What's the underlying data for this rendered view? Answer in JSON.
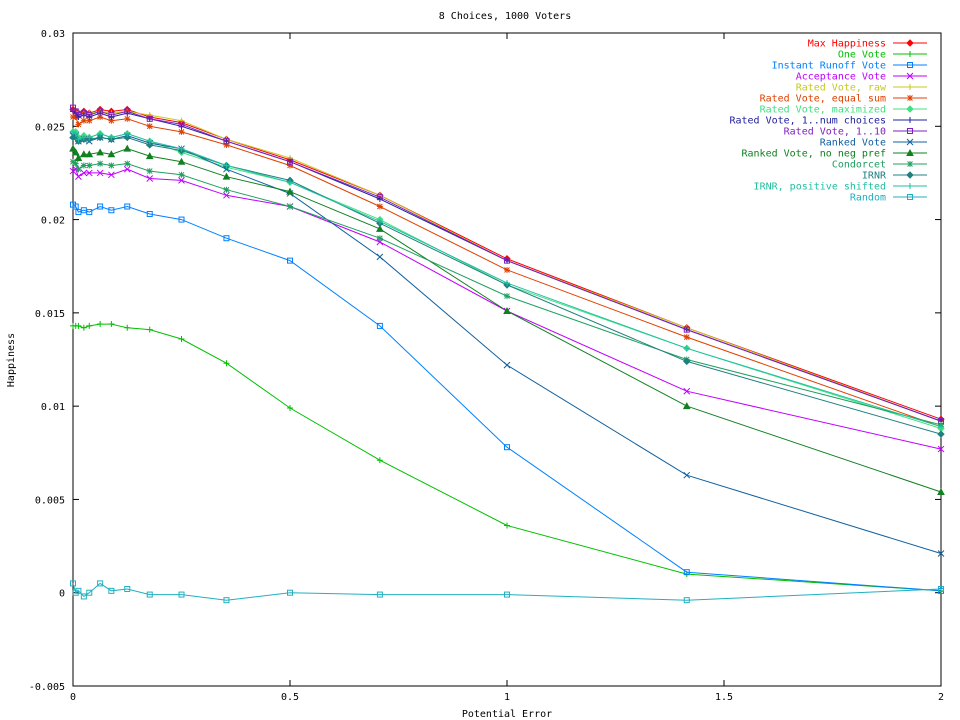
{
  "chart_data": {
    "type": "line",
    "title": "8 Choices, 1000 Voters",
    "xlabel": "Potential Error",
    "ylabel": "Happiness",
    "xlim": [
      0,
      2
    ],
    "ylim": [
      -0.005,
      0.03
    ],
    "x_ticks": [
      "0",
      "0.5",
      "1",
      "1.5",
      "2"
    ],
    "x_tick_values": [
      0,
      0.5,
      1,
      1.5,
      2
    ],
    "y_ticks": [
      "-0.005",
      "0",
      "0.005",
      "0.01",
      "0.015",
      "0.02",
      "0.025",
      "0.03"
    ],
    "y_tick_values": [
      -0.005,
      0,
      0.005,
      0.01,
      0.015,
      0.02,
      0.025,
      0.03
    ],
    "grid": false,
    "legend_position": "top-right",
    "x": [
      0,
      0.00625,
      0.0125,
      0.025,
      0.0375,
      0.0625,
      0.0884,
      0.125,
      0.1768,
      0.25,
      0.3536,
      0.5,
      0.7071,
      1,
      1.4142,
      2
    ],
    "series": [
      {
        "name": "Max Happiness",
        "color": "#ff0000",
        "marker": "diamond",
        "values": [
          0.0259,
          0.0258,
          0.0257,
          0.0258,
          0.0257,
          0.0259,
          0.0258,
          0.0259,
          0.0255,
          0.0252,
          0.0243,
          0.0232,
          0.0213,
          0.0179,
          0.0142,
          0.0093
        ]
      },
      {
        "name": "One Vote",
        "color": "#00c000",
        "marker": "plus",
        "values": [
          0.0143,
          0.0143,
          0.0143,
          0.0142,
          0.0143,
          0.0144,
          0.0144,
          0.0142,
          0.0141,
          0.0136,
          0.0123,
          0.0099,
          0.0071,
          0.0036,
          0.001,
          0.0001
        ]
      },
      {
        "name": "Instant Runoff Vote",
        "color": "#0080ff",
        "marker": "square",
        "values": [
          0.0208,
          0.0207,
          0.0204,
          0.0205,
          0.0204,
          0.0207,
          0.0205,
          0.0207,
          0.0203,
          0.02,
          0.019,
          0.0178,
          0.0143,
          0.0078,
          0.0011,
          0.0001
        ]
      },
      {
        "name": "Acceptance Vote",
        "color": "#c000ff",
        "marker": "cross",
        "values": [
          0.0226,
          0.0227,
          0.0223,
          0.0225,
          0.0225,
          0.0225,
          0.0224,
          0.0227,
          0.0222,
          0.0221,
          0.0213,
          0.0207,
          0.0188,
          0.0151,
          0.0108,
          0.0077
        ]
      },
      {
        "name": "Rated Vote, raw",
        "color": "#c8c820",
        "marker": "plus",
        "values": [
          0.0258,
          0.0258,
          0.0257,
          0.0257,
          0.0257,
          0.0258,
          0.0257,
          0.0258,
          0.0256,
          0.0253,
          0.0243,
          0.0233,
          0.0213,
          0.0178,
          0.0142,
          0.0092
        ]
      },
      {
        "name": "Rated Vote, equal sum",
        "color": "#e04000",
        "marker": "star",
        "values": [
          0.0255,
          0.0255,
          0.0251,
          0.0253,
          0.0253,
          0.0255,
          0.0253,
          0.0254,
          0.025,
          0.0247,
          0.024,
          0.0229,
          0.0207,
          0.0173,
          0.0137,
          0.0089
        ]
      },
      {
        "name": "Rated Vote, maximized",
        "color": "#40e080",
        "marker": "diamond",
        "values": [
          0.0247,
          0.0247,
          0.0244,
          0.0245,
          0.0244,
          0.0246,
          0.0244,
          0.0246,
          0.0242,
          0.0236,
          0.0228,
          0.022,
          0.02,
          0.0165,
          0.0131,
          0.0088
        ]
      },
      {
        "name": "Rated Vote, 1..num choices",
        "color": "#2020a0",
        "marker": "plus",
        "values": [
          0.0258,
          0.0257,
          0.0255,
          0.0256,
          0.0255,
          0.0257,
          0.0255,
          0.0257,
          0.0254,
          0.025,
          0.0242,
          0.0231,
          0.0211,
          0.0178,
          0.0141,
          0.0092
        ]
      },
      {
        "name": "Rated Vote, 1..10",
        "color": "#8020c0",
        "marker": "square",
        "values": [
          0.026,
          0.0258,
          0.0256,
          0.0257,
          0.0256,
          0.0258,
          0.0256,
          0.0258,
          0.0254,
          0.0251,
          0.0242,
          0.0231,
          0.0212,
          0.0178,
          0.0141,
          0.0092
        ]
      },
      {
        "name": "Ranked Vote",
        "color": "#1060a0",
        "marker": "cross",
        "values": [
          0.0245,
          0.0245,
          0.0242,
          0.0243,
          0.0242,
          0.0244,
          0.0243,
          0.0245,
          0.0241,
          0.0238,
          0.0227,
          0.0214,
          0.018,
          0.0122,
          0.0063,
          0.0021
        ]
      },
      {
        "name": "Ranked Vote, no neg pref",
        "color": "#108020",
        "marker": "triangle",
        "values": [
          0.0238,
          0.0236,
          0.0233,
          0.0235,
          0.0235,
          0.0236,
          0.0235,
          0.0238,
          0.0234,
          0.0231,
          0.0223,
          0.0215,
          0.0195,
          0.0151,
          0.01,
          0.0054
        ]
      },
      {
        "name": "Condorcet",
        "color": "#20a060",
        "marker": "star",
        "values": [
          0.0231,
          0.023,
          0.0227,
          0.0229,
          0.0229,
          0.023,
          0.0229,
          0.023,
          0.0226,
          0.0224,
          0.0216,
          0.0207,
          0.019,
          0.0159,
          0.0125,
          0.009
        ]
      },
      {
        "name": "IRNR",
        "color": "#208080",
        "marker": "diamond",
        "values": [
          0.0244,
          0.0244,
          0.0242,
          0.0243,
          0.0243,
          0.0244,
          0.0243,
          0.0244,
          0.024,
          0.0237,
          0.0229,
          0.0221,
          0.0198,
          0.0165,
          0.0124,
          0.0085
        ]
      },
      {
        "name": "IRNR, positive shifted",
        "color": "#20c0a0",
        "marker": "plus",
        "values": [
          0.0247,
          0.0246,
          0.0243,
          0.0244,
          0.0244,
          0.0246,
          0.0244,
          0.0246,
          0.0242,
          0.0238,
          0.0229,
          0.022,
          0.0199,
          0.0166,
          0.0131,
          0.0089
        ]
      },
      {
        "name": "Random",
        "color": "#20b0c0",
        "marker": "square",
        "values": [
          0.0005,
          0.0,
          0.0001,
          -0.0002,
          0.0,
          0.0005,
          0.0001,
          0.0002,
          -0.0001,
          -0.0001,
          -0.0004,
          0.0,
          -0.0001,
          -0.0001,
          -0.0004,
          0.0002
        ]
      }
    ]
  }
}
